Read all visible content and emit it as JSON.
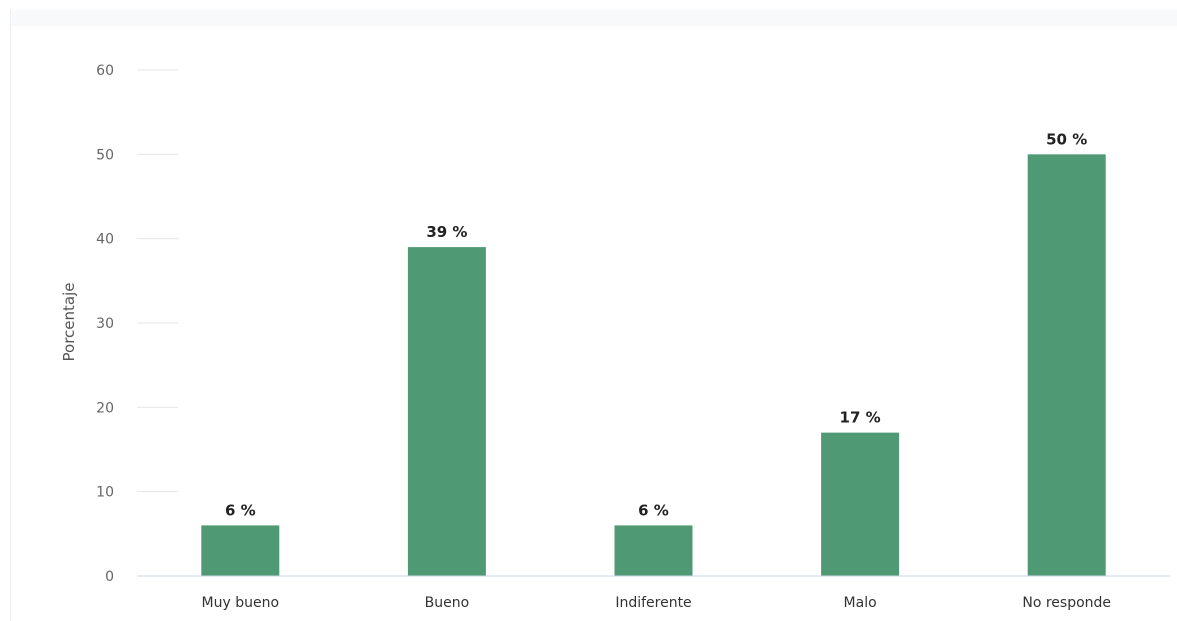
{
  "chart_data": {
    "type": "bar",
    "title": "",
    "xlabel": "",
    "ylabel": "Porcentaje",
    "categories": [
      "Muy bueno",
      "Bueno",
      "Indiferente",
      "Malo",
      "No responde"
    ],
    "values": [
      6,
      39,
      6,
      17,
      50
    ],
    "data_labels": [
      "6 %",
      "39 %",
      "6 %",
      "17 %",
      "50 %"
    ],
    "ylim": [
      0,
      60
    ],
    "yticks": [
      0,
      10,
      20,
      30,
      40,
      50,
      60
    ],
    "grid": "horizontal",
    "legend": "none",
    "colors": {
      "bar": "#4f9a74",
      "gridline": "#e6e6e6",
      "baseline": "#ccd6eb"
    }
  }
}
